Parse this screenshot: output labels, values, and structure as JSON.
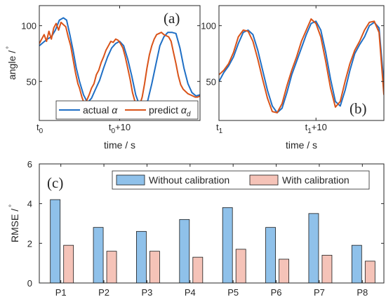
{
  "chart_data": [
    {
      "panel": "(a)",
      "type": "line",
      "ylabel": "angle /",
      "ylabel_unit": "°",
      "xlabel": "time / s",
      "xtick_labels": [
        {
          "base": "t",
          "sub": "0",
          "suffix": ""
        },
        {
          "base": "t",
          "sub": "0",
          "suffix": "+10"
        }
      ],
      "xlim": [
        0,
        20
      ],
      "xticks": [
        0,
        10
      ],
      "ylim": [
        15,
        118
      ],
      "yticks": [
        50,
        100
      ],
      "legend_position": "bottom-right",
      "series": [
        {
          "name": "actual α",
          "legend_base": "actual ",
          "legend_symbol": "α",
          "legend_sub": "",
          "color": "#1f6fc5",
          "x": [
            0,
            0.5,
            1,
            1.5,
            2,
            2.5,
            3,
            3.4,
            3.8,
            4.2,
            4.6,
            5,
            5.5,
            6,
            6.5,
            7,
            7.5,
            8,
            8.5,
            9,
            9.5,
            10,
            10.5,
            11,
            11.5,
            12,
            12.5,
            13,
            13.5,
            14,
            14.5,
            15,
            15.5,
            16,
            16.5,
            17,
            17.5,
            18,
            18.5,
            19,
            19.5,
            20
          ],
          "values": [
            82,
            85,
            88,
            90,
            96,
            105,
            107,
            105,
            92,
            78,
            62,
            50,
            38,
            31,
            35,
            43,
            51,
            62,
            72,
            80,
            84,
            86,
            82,
            70,
            55,
            38,
            28,
            27,
            33,
            48,
            65,
            82,
            90,
            94,
            94,
            93,
            80,
            62,
            48,
            40,
            37,
            38
          ]
        },
        {
          "name": "predict αd",
          "legend_base": "predict ",
          "legend_symbol": "α",
          "legend_sub": "d",
          "color": "#d95319",
          "x": [
            0,
            0.3,
            0.6,
            0.9,
            1.2,
            1.5,
            1.8,
            2.1,
            2.4,
            2.7,
            3,
            3.3,
            3.6,
            3.9,
            4.2,
            4.5,
            4.8,
            5,
            5.3,
            5.6,
            5.9,
            6.2,
            6.5,
            6.8,
            7.1,
            7.4,
            7.7,
            8,
            8.3,
            8.6,
            8.9,
            9.2,
            9.5,
            9.8,
            10.1,
            10.4,
            10.7,
            11,
            11.3,
            11.6,
            11.9,
            12.2,
            12.5,
            12.8,
            13.1,
            13.4,
            13.7,
            14,
            14.3,
            14.6,
            14.9,
            15.2,
            15.5,
            15.8,
            16.1,
            16.4,
            16.7,
            17,
            17.3,
            17.6,
            17.9,
            18.2,
            18.5,
            18.8,
            19.1,
            19.4,
            19.7,
            20
          ],
          "values": [
            84,
            88,
            92,
            86,
            95,
            88,
            98,
            102,
            96,
            103,
            101,
            99,
            90,
            82,
            70,
            58,
            48,
            44,
            36,
            30,
            33,
            38,
            44,
            48,
            56,
            60,
            67,
            72,
            78,
            82,
            86,
            85,
            88,
            87,
            84,
            80,
            72,
            62,
            52,
            40,
            32,
            28,
            29,
            36,
            48,
            62,
            74,
            82,
            88,
            92,
            93,
            94,
            92,
            91,
            90,
            86,
            76,
            66,
            55,
            47,
            43,
            41,
            39,
            38,
            37,
            36,
            36,
            37
          ]
        }
      ]
    },
    {
      "panel": "(b)",
      "type": "line",
      "xlabel": "time / s",
      "xtick_labels": [
        {
          "base": "t",
          "sub": "1",
          "suffix": ""
        },
        {
          "base": "t",
          "sub": "1",
          "suffix": "+10"
        }
      ],
      "xlim": [
        0,
        17
      ],
      "xticks": [
        0,
        10
      ],
      "ylim": [
        15,
        118
      ],
      "yticks": [
        50,
        100
      ],
      "series": [
        {
          "name": "actual α",
          "color": "#1f6fc5",
          "x": [
            0,
            0.5,
            1,
            1.5,
            2,
            2.5,
            3,
            3.5,
            4,
            4.5,
            5,
            5.5,
            6,
            6.5,
            7,
            7.5,
            8,
            8.5,
            9,
            9.5,
            10,
            10.5,
            11,
            11.5,
            12,
            12.5,
            13,
            13.5,
            14,
            14.5,
            15,
            15.5,
            16,
            16.5,
            17
          ],
          "values": [
            50,
            58,
            64,
            72,
            84,
            94,
            96,
            92,
            78,
            60,
            42,
            28,
            22,
            26,
            40,
            56,
            68,
            80,
            92,
            102,
            104,
            96,
            76,
            52,
            32,
            28,
            42,
            60,
            75,
            83,
            90,
            100,
            103,
            98,
            48
          ]
        },
        {
          "name": "predict αd",
          "color": "#d95319",
          "x": [
            0,
            0.5,
            1,
            1.5,
            2,
            2.5,
            3,
            3.5,
            4,
            4.5,
            5,
            5.5,
            6,
            6.5,
            7,
            7.5,
            8,
            8.5,
            9,
            9.5,
            10,
            10.5,
            11,
            11.5,
            12,
            12.5,
            13,
            13.5,
            14,
            14.5,
            15,
            15.5,
            16,
            16.5,
            17
          ],
          "values": [
            56,
            60,
            66,
            76,
            90,
            96,
            95,
            86,
            70,
            52,
            35,
            23,
            22,
            30,
            46,
            60,
            72,
            86,
            96,
            106,
            102,
            90,
            68,
            44,
            27,
            32,
            50,
            66,
            78,
            86,
            96,
            103,
            104,
            94,
            38
          ]
        }
      ]
    },
    {
      "panel": "(c)",
      "type": "bar",
      "ylabel": "RMSE /",
      "ylabel_unit": "°",
      "categories": [
        "P1",
        "P2",
        "P3",
        "P4",
        "P5",
        "P6",
        "P7",
        "P8"
      ],
      "ylim": [
        0,
        6
      ],
      "yticks": [
        0,
        2,
        4,
        6
      ],
      "legend_position": "top-right",
      "series": [
        {
          "name": "Without calibration",
          "color": "#8fc1ea",
          "values": [
            4.2,
            2.8,
            2.6,
            3.2,
            3.8,
            2.8,
            3.5,
            1.9
          ]
        },
        {
          "name": "With calibration",
          "color": "#f5c3b8",
          "values": [
            1.9,
            1.6,
            1.6,
            1.3,
            1.7,
            1.2,
            1.4,
            1.1
          ]
        }
      ]
    }
  ]
}
